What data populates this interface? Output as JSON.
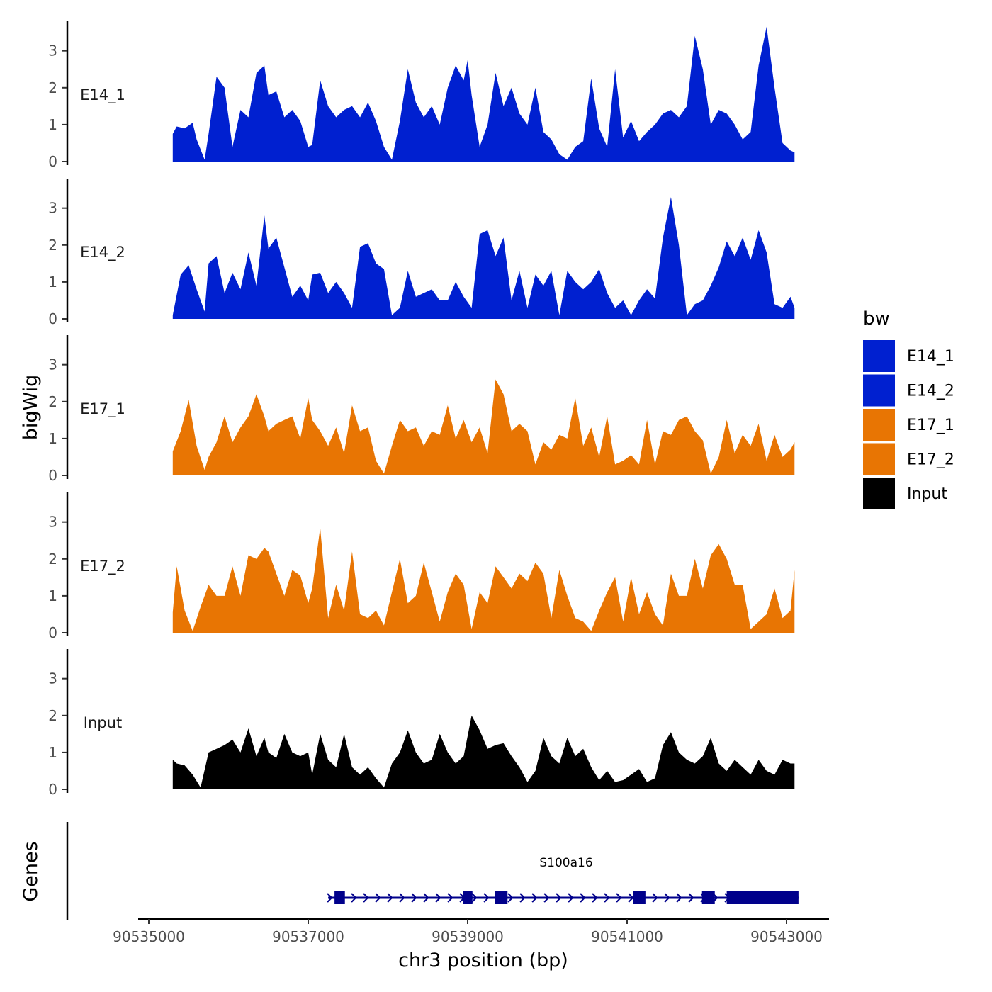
{
  "chart_data": {
    "type": "area",
    "ylabel": "bigWig",
    "xlabel": "chr3 position (bp)",
    "xlim": [
      90535000,
      90543200
    ],
    "ylim": [
      0,
      3.8
    ],
    "y_ticks": [
      "0",
      "1",
      "2",
      "3"
    ],
    "x_ticks": [
      {
        "value": 90535000,
        "label": "90535000"
      },
      {
        "value": 90537000,
        "label": "90537000"
      },
      {
        "value": 90539000,
        "label": "90539000"
      },
      {
        "value": 90541000,
        "label": "90541000"
      },
      {
        "value": 90543000,
        "label": "90543000"
      }
    ],
    "tracks": [
      {
        "name": "E14_1",
        "color": "#0020D0",
        "x": [
          90535300,
          90535350,
          90535450,
          90535550,
          90535600,
          90535700,
          90535750,
          90535850,
          90535950,
          90536050,
          90536150,
          90536250,
          90536350,
          90536450,
          90536500,
          90536600,
          90536700,
          90536800,
          90536900,
          90537000,
          90537050,
          90537150,
          90537250,
          90537350,
          90537450,
          90537550,
          90537650,
          90537750,
          90537850,
          90537950,
          90538050,
          90538150,
          90538250,
          90538350,
          90538450,
          90538550,
          90538650,
          90538750,
          90538850,
          90538950,
          90539000,
          90539050,
          90539150,
          90539250,
          90539350,
          90539450,
          90539550,
          90539650,
          90539750,
          90539850,
          90539950,
          90540050,
          90540150,
          90540250,
          90540350,
          90540450,
          90540550,
          90540650,
          90540750,
          90540850,
          90540950,
          90541050,
          90541150,
          90541250,
          90541350,
          90541450,
          90541550,
          90541650,
          90541750,
          90541850,
          90541950,
          90542050,
          90542150,
          90542250,
          90542350,
          90542450,
          90542550,
          90542650,
          90542750,
          90542850,
          90542950,
          90543050,
          90543100
        ],
        "values": [
          0.75,
          0.95,
          0.9,
          1.05,
          0.6,
          0.05,
          0.75,
          2.3,
          2.0,
          0.4,
          1.4,
          1.2,
          2.4,
          2.6,
          1.8,
          1.9,
          1.2,
          1.4,
          1.1,
          0.4,
          0.45,
          2.2,
          1.5,
          1.2,
          1.4,
          1.5,
          1.2,
          1.6,
          1.1,
          0.4,
          0.05,
          1.1,
          2.5,
          1.6,
          1.2,
          1.5,
          1.0,
          2.0,
          2.6,
          2.2,
          2.75,
          1.8,
          0.4,
          1.0,
          2.4,
          1.5,
          2.0,
          1.3,
          1.0,
          2.0,
          0.8,
          0.6,
          0.2,
          0.05,
          0.4,
          0.55,
          2.25,
          0.9,
          0.4,
          2.5,
          0.65,
          1.1,
          0.55,
          0.8,
          1.0,
          1.3,
          1.4,
          1.2,
          1.5,
          3.4,
          2.5,
          1.0,
          1.4,
          1.3,
          1.0,
          0.6,
          0.8,
          2.6,
          3.65,
          2.0,
          0.5,
          0.3,
          0.25
        ]
      },
      {
        "name": "E14_2",
        "color": "#0020D0",
        "x": [
          90535300,
          90535400,
          90535500,
          90535600,
          90535700,
          90535750,
          90535850,
          90535950,
          90536050,
          90536150,
          90536250,
          90536350,
          90536450,
          90536500,
          90536600,
          90536700,
          90536800,
          90536900,
          90537000,
          90537050,
          90537150,
          90537250,
          90537350,
          90537450,
          90537550,
          90537650,
          90537750,
          90537850,
          90537950,
          90538050,
          90538150,
          90538250,
          90538350,
          90538450,
          90538550,
          90538650,
          90538750,
          90538850,
          90538950,
          90539050,
          90539150,
          90539250,
          90539350,
          90539450,
          90539550,
          90539650,
          90539750,
          90539850,
          90539950,
          90540050,
          90540150,
          90540250,
          90540350,
          90540450,
          90540550,
          90540650,
          90540750,
          90540850,
          90540950,
          90541050,
          90541150,
          90541250,
          90541350,
          90541450,
          90541550,
          90541650,
          90541750,
          90541850,
          90541950,
          90542050,
          90542150,
          90542250,
          90542350,
          90542450,
          90542550,
          90542650,
          90542750,
          90542850,
          90542950,
          90543050,
          90543100
        ],
        "values": [
          0.1,
          1.2,
          1.45,
          0.8,
          0.2,
          1.5,
          1.7,
          0.7,
          1.25,
          0.8,
          1.8,
          0.9,
          2.8,
          1.9,
          2.2,
          1.4,
          0.6,
          0.9,
          0.5,
          1.2,
          1.25,
          0.7,
          1.0,
          0.7,
          0.3,
          1.95,
          2.05,
          1.5,
          1.35,
          0.1,
          0.3,
          1.3,
          0.6,
          0.7,
          0.8,
          0.5,
          0.5,
          1.0,
          0.6,
          0.3,
          2.3,
          2.4,
          1.7,
          2.2,
          0.5,
          1.3,
          0.3,
          1.2,
          0.9,
          1.3,
          0.1,
          1.3,
          1.0,
          0.8,
          1.0,
          1.35,
          0.7,
          0.3,
          0.5,
          0.1,
          0.5,
          0.8,
          0.55,
          2.2,
          3.3,
          2.0,
          0.1,
          0.4,
          0.5,
          0.9,
          1.4,
          2.1,
          1.7,
          2.2,
          1.6,
          2.4,
          1.8,
          0.4,
          0.3,
          0.6,
          0.3
        ]
      },
      {
        "name": "E17_1",
        "color": "#E87503",
        "x": [
          90535300,
          90535400,
          90535500,
          90535600,
          90535700,
          90535750,
          90535850,
          90535950,
          90536050,
          90536150,
          90536250,
          90536350,
          90536450,
          90536500,
          90536600,
          90536700,
          90536800,
          90536900,
          90537000,
          90537050,
          90537150,
          90537250,
          90537350,
          90537450,
          90537550,
          90537650,
          90537750,
          90537850,
          90537950,
          90538050,
          90538150,
          90538250,
          90538350,
          90538450,
          90538550,
          90538650,
          90538750,
          90538850,
          90538950,
          90539050,
          90539150,
          90539250,
          90539350,
          90539450,
          90539550,
          90539650,
          90539750,
          90539850,
          90539950,
          90540050,
          90540150,
          90540250,
          90540350,
          90540450,
          90540550,
          90540650,
          90540750,
          90540850,
          90540950,
          90541050,
          90541150,
          90541250,
          90541350,
          90541450,
          90541550,
          90541650,
          90541750,
          90541850,
          90541950,
          90542050,
          90542150,
          90542250,
          90542350,
          90542450,
          90542550,
          90542650,
          90542750,
          90542850,
          90542950,
          90543050,
          90543100
        ],
        "values": [
          0.65,
          1.2,
          2.05,
          0.8,
          0.15,
          0.5,
          0.9,
          1.6,
          0.9,
          1.3,
          1.6,
          2.2,
          1.6,
          1.2,
          1.4,
          1.5,
          1.6,
          1.0,
          2.1,
          1.5,
          1.2,
          0.8,
          1.3,
          0.6,
          1.9,
          1.2,
          1.3,
          0.4,
          0.05,
          0.8,
          1.5,
          1.2,
          1.3,
          0.8,
          1.2,
          1.1,
          1.9,
          1.0,
          1.5,
          0.9,
          1.3,
          0.6,
          2.6,
          2.2,
          1.2,
          1.4,
          1.2,
          0.3,
          0.9,
          0.7,
          1.1,
          1.0,
          2.1,
          0.8,
          1.3,
          0.5,
          1.6,
          0.3,
          0.4,
          0.55,
          0.3,
          1.5,
          0.3,
          1.2,
          1.1,
          1.5,
          1.6,
          1.2,
          0.95,
          0.05,
          0.5,
          1.5,
          0.6,
          1.1,
          0.8,
          1.4,
          0.4,
          1.1,
          0.5,
          0.7,
          0.9
        ]
      },
      {
        "name": "E17_2",
        "color": "#E87503",
        "x": [
          90535300,
          90535350,
          90535450,
          90535550,
          90535650,
          90535750,
          90535850,
          90535950,
          90536050,
          90536150,
          90536250,
          90536350,
          90536450,
          90536500,
          90536600,
          90536700,
          90536800,
          90536900,
          90537000,
          90537050,
          90537150,
          90537250,
          90537350,
          90537450,
          90537550,
          90537650,
          90537750,
          90537850,
          90537950,
          90538050,
          90538150,
          90538250,
          90538350,
          90538450,
          90538550,
          90538650,
          90538750,
          90538850,
          90538950,
          90539050,
          90539150,
          90539250,
          90539350,
          90539450,
          90539550,
          90539650,
          90539750,
          90539850,
          90539950,
          90540050,
          90540150,
          90540250,
          90540350,
          90540450,
          90540550,
          90540650,
          90540750,
          90540850,
          90540950,
          90541050,
          90541150,
          90541250,
          90541350,
          90541450,
          90541550,
          90541650,
          90541750,
          90541850,
          90541950,
          90542050,
          90542150,
          90542250,
          90542350,
          90542450,
          90542550,
          90542650,
          90542750,
          90542850,
          90542950,
          90543050,
          90543100
        ],
        "values": [
          0.55,
          1.8,
          0.6,
          0.05,
          0.7,
          1.3,
          1.0,
          1.0,
          1.8,
          1.0,
          2.1,
          2.0,
          2.3,
          2.2,
          1.6,
          1.0,
          1.7,
          1.55,
          0.8,
          1.2,
          2.85,
          0.4,
          1.3,
          0.6,
          2.2,
          0.5,
          0.4,
          0.6,
          0.2,
          1.1,
          2.0,
          0.8,
          1.0,
          1.9,
          1.1,
          0.3,
          1.1,
          1.6,
          1.3,
          0.1,
          1.1,
          0.8,
          1.8,
          1.5,
          1.2,
          1.6,
          1.4,
          1.9,
          1.6,
          0.4,
          1.7,
          1.0,
          0.4,
          0.3,
          0.05,
          0.6,
          1.1,
          1.5,
          0.3,
          1.5,
          0.5,
          1.1,
          0.5,
          0.2,
          1.6,
          1.0,
          1.0,
          2.0,
          1.2,
          2.1,
          2.4,
          2.0,
          1.3,
          1.3,
          0.1,
          0.3,
          0.5,
          1.2,
          0.4,
          0.6,
          1.7
        ]
      },
      {
        "name": "Input",
        "color": "#000000",
        "x": [
          90535300,
          90535350,
          90535450,
          90535550,
          90535650,
          90535750,
          90535850,
          90535950,
          90536050,
          90536150,
          90536250,
          90536350,
          90536450,
          90536500,
          90536600,
          90536700,
          90536800,
          90536900,
          90537000,
          90537050,
          90537150,
          90537250,
          90537350,
          90537450,
          90537550,
          90537650,
          90537750,
          90537850,
          90537950,
          90538050,
          90538150,
          90538250,
          90538350,
          90538450,
          90538550,
          90538650,
          90538750,
          90538850,
          90538950,
          90539050,
          90539150,
          90539250,
          90539350,
          90539450,
          90539550,
          90539650,
          90539750,
          90539850,
          90539950,
          90540050,
          90540150,
          90540250,
          90540350,
          90540450,
          90540550,
          90540650,
          90540750,
          90540850,
          90540950,
          90541050,
          90541150,
          90541250,
          90541350,
          90541450,
          90541550,
          90541650,
          90541750,
          90541850,
          90541950,
          90542050,
          90542150,
          90542250,
          90542350,
          90542450,
          90542550,
          90542650,
          90542750,
          90542850,
          90542950,
          90543050,
          90543100
        ],
        "values": [
          0.8,
          0.7,
          0.65,
          0.4,
          0.05,
          1.0,
          1.1,
          1.2,
          1.35,
          1.0,
          1.65,
          0.9,
          1.4,
          1.0,
          0.85,
          1.5,
          1.0,
          0.9,
          1.0,
          0.4,
          1.5,
          0.8,
          0.6,
          1.5,
          0.6,
          0.4,
          0.6,
          0.3,
          0.05,
          0.7,
          1.0,
          1.6,
          1.0,
          0.7,
          0.8,
          1.5,
          1.0,
          0.7,
          0.9,
          2.0,
          1.6,
          1.1,
          1.2,
          1.25,
          0.9,
          0.6,
          0.2,
          0.5,
          1.4,
          0.9,
          0.7,
          1.4,
          0.9,
          1.1,
          0.6,
          0.25,
          0.5,
          0.2,
          0.25,
          0.4,
          0.55,
          0.2,
          0.3,
          1.2,
          1.55,
          1.0,
          0.8,
          0.7,
          0.9,
          1.4,
          0.7,
          0.5,
          0.8,
          0.6,
          0.4,
          0.8,
          0.5,
          0.4,
          0.8,
          0.7,
          0.7
        ]
      }
    ],
    "genes_label": "Genes",
    "gene": {
      "name": "S100a16",
      "start": 90537250,
      "end": 90543150,
      "strand": "+",
      "color": "#00008B",
      "exons": [
        [
          90537330,
          90537460
        ],
        [
          90538940,
          90539060
        ],
        [
          90539340,
          90539500
        ],
        [
          90541080,
          90541230
        ],
        [
          90541940,
          90542100
        ],
        [
          90542250,
          90543150
        ]
      ]
    },
    "legend": {
      "title": "bw",
      "position": "right",
      "entries": [
        {
          "label": "E14_1",
          "color": "#0020D0"
        },
        {
          "label": "E14_2",
          "color": "#0020D0"
        },
        {
          "label": "E17_1",
          "color": "#E87503"
        },
        {
          "label": "E17_2",
          "color": "#E87503"
        },
        {
          "label": "Input",
          "color": "#000000"
        }
      ]
    }
  }
}
